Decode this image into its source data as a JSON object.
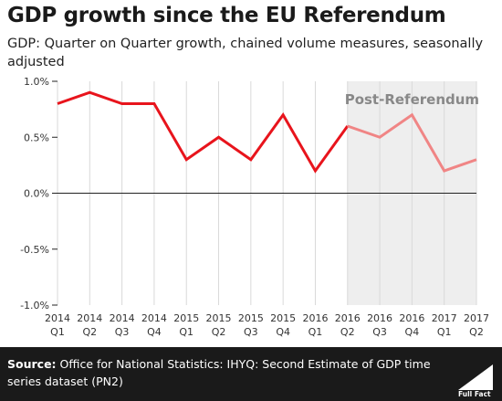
{
  "chart_data": {
    "type": "line",
    "title": "GDP growth since the EU Referendum",
    "subtitle": "GDP: Quarter on Quarter growth, chained volume measures, seasonally adjusted",
    "categories": [
      [
        "2014",
        "Q1"
      ],
      [
        "2014",
        "Q2"
      ],
      [
        "2014",
        "Q3"
      ],
      [
        "2014",
        "Q4"
      ],
      [
        "2015",
        "Q1"
      ],
      [
        "2015",
        "Q2"
      ],
      [
        "2015",
        "Q3"
      ],
      [
        "2015",
        "Q4"
      ],
      [
        "2016",
        "Q1"
      ],
      [
        "2016",
        "Q2"
      ],
      [
        "2016",
        "Q3"
      ],
      [
        "2016",
        "Q4"
      ],
      [
        "2017",
        "Q1"
      ],
      [
        "2017",
        "Q2"
      ]
    ],
    "series": [
      {
        "values": [
          0.8,
          0.9,
          0.8,
          0.8,
          0.3,
          0.5,
          0.3,
          0.7,
          0.2,
          0.6,
          0.5,
          0.7,
          0.2,
          0.3
        ]
      }
    ],
    "ylim": [
      -1.0,
      1.0
    ],
    "yticks": [
      1.0,
      0.5,
      0.0,
      -0.5,
      -1.0
    ],
    "ytick_labels": [
      "1.0%",
      "0.5%",
      "0.0%",
      "-0.5%",
      "-1.0%"
    ],
    "xlabel": "",
    "ylabel": "",
    "grid": "vertical",
    "shaded_region": {
      "label": "Post-Referendum",
      "from_index": 9,
      "to_index": 13
    },
    "split_index": 9,
    "colors": {
      "pre": "#e8141c",
      "post": "#f08585",
      "shade": "#eeeeee",
      "grid": "#d9d9d9",
      "axis": "#222222",
      "shade_label": "#888888"
    }
  },
  "footer": {
    "source_label": "Source:",
    "source_text": " Office for National Statistics: IHYQ: Second Estimate of GDP time series dataset (PN2)",
    "logo_text": "Full Fact"
  }
}
